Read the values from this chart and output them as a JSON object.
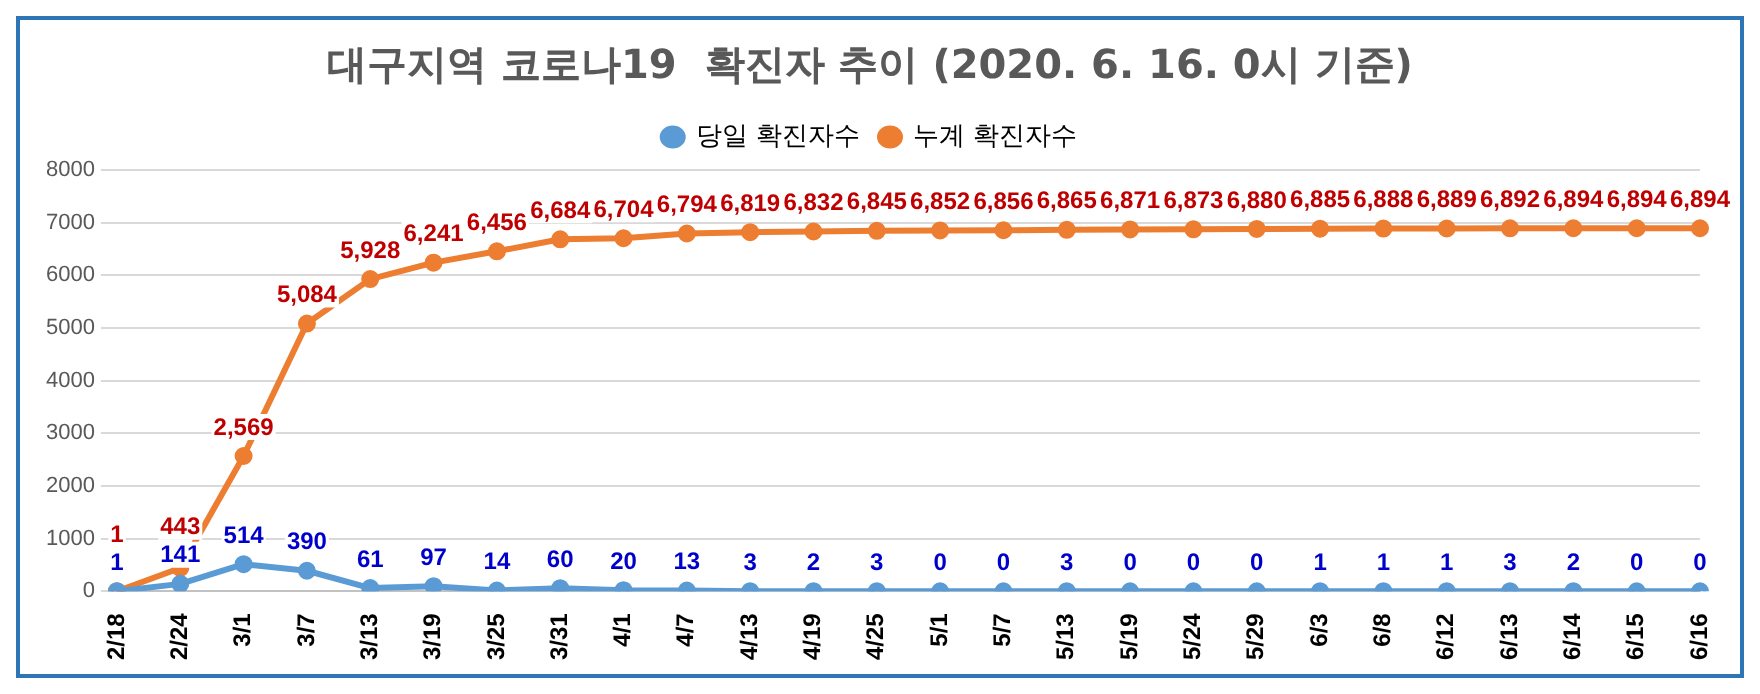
{
  "chart_data": {
    "type": "line",
    "title": "대구지역 코로나19  확진자 추이 (2020. 6. 16. 0시 기준)",
    "categories": [
      "2/18",
      "2/24",
      "3/1",
      "3/7",
      "3/13",
      "3/19",
      "3/25",
      "3/31",
      "4/1",
      "4/7",
      "4/13",
      "4/19",
      "4/25",
      "5/1",
      "5/7",
      "5/13",
      "5/19",
      "5/24",
      "5/29",
      "6/3",
      "6/8",
      "6/12",
      "6/13",
      "6/14",
      "6/15",
      "6/16"
    ],
    "series": [
      {
        "name": "당일 확진자수",
        "color": "#5b9bd5",
        "values": [
          1,
          141,
          514,
          390,
          61,
          97,
          14,
          60,
          20,
          13,
          3,
          2,
          3,
          0,
          0,
          3,
          0,
          0,
          0,
          1,
          1,
          1,
          3,
          2,
          0,
          0
        ],
        "value_labels": [
          "1",
          "141",
          "514",
          "390",
          "61",
          "97",
          "14",
          "60",
          "20",
          "13",
          "3",
          "2",
          "3",
          "0",
          "0",
          "3",
          "0",
          "0",
          "0",
          "1",
          "1",
          "1",
          "3",
          "2",
          "0",
          "0"
        ]
      },
      {
        "name": "누계 확진자수",
        "color": "#ed7d31",
        "values": [
          1,
          443,
          2569,
          5084,
          5928,
          6241,
          6456,
          6684,
          6704,
          6794,
          6819,
          6832,
          6845,
          6852,
          6856,
          6865,
          6871,
          6873,
          6880,
          6885,
          6888,
          6889,
          6892,
          6894,
          6894,
          6894
        ],
        "value_labels": [
          "1",
          "443",
          "2,569",
          "5,084",
          "5,928",
          "6,241",
          "6,456",
          "6,684",
          "6,704",
          "6,794",
          "6,819",
          "6,832",
          "6,845",
          "6,852",
          "6,856",
          "6,865",
          "6,871",
          "6,873",
          "6,880",
          "6,885",
          "6,888",
          "6,889",
          "6,892",
          "6,894",
          "6,894",
          "6,894"
        ]
      }
    ],
    "ylim": [
      0,
      8000
    ],
    "yticks": [
      0,
      1000,
      2000,
      3000,
      4000,
      5000,
      6000,
      7000,
      8000
    ],
    "grid": "y",
    "legend": "top",
    "marker": "circle",
    "line_style": "solid"
  }
}
